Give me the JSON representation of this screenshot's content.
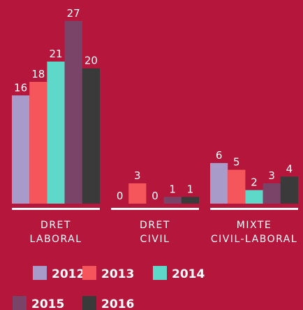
{
  "chart_data": {
    "type": "bar",
    "categories": [
      "DRET\nLABORAL",
      "DRET\nCIVIL",
      "MIXTE\nCIVIL-LABORAL"
    ],
    "series": [
      {
        "name": "2012",
        "color": "#a89bc9",
        "values": [
          16,
          0,
          6
        ]
      },
      {
        "name": "2013",
        "color": "#f4565b",
        "values": [
          18,
          3,
          5
        ]
      },
      {
        "name": "2014",
        "color": "#5ed8c8",
        "values": [
          21,
          0,
          2
        ]
      },
      {
        "name": "2015",
        "color": "#7a4468",
        "values": [
          27,
          1,
          3
        ]
      },
      {
        "name": "2016",
        "color": "#3a3a3a",
        "values": [
          20,
          1,
          4
        ]
      }
    ]
  }
}
